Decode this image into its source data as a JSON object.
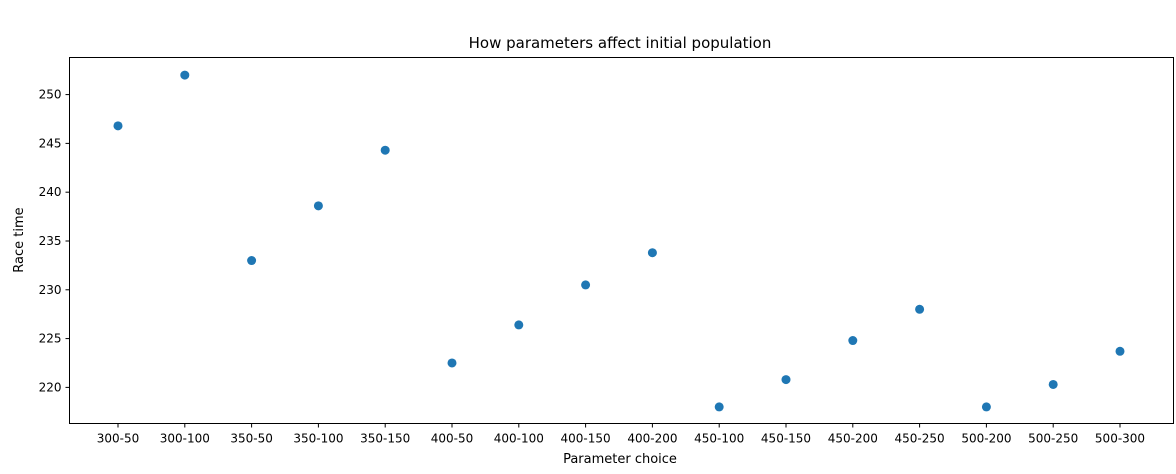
{
  "chart_data": {
    "type": "scatter",
    "title": "How parameters affect initial population",
    "xlabel": "Parameter choice",
    "ylabel": "Race time",
    "categories": [
      "300-50",
      "300-100",
      "350-50",
      "350-100",
      "350-150",
      "400-50",
      "400-100",
      "400-150",
      "400-200",
      "450-100",
      "450-150",
      "450-200",
      "450-250",
      "500-200",
      "500-250",
      "500-300"
    ],
    "values": [
      246.8,
      252.0,
      233.0,
      238.6,
      244.3,
      222.5,
      226.4,
      230.5,
      233.8,
      218.0,
      220.8,
      224.8,
      228.0,
      218.0,
      220.3,
      223.7
    ],
    "ylim": [
      216.3,
      253.8
    ],
    "yticks": [
      220,
      225,
      230,
      235,
      240,
      245,
      250
    ],
    "grid": false,
    "legend": "none",
    "marker_color": "#1f77b4"
  }
}
